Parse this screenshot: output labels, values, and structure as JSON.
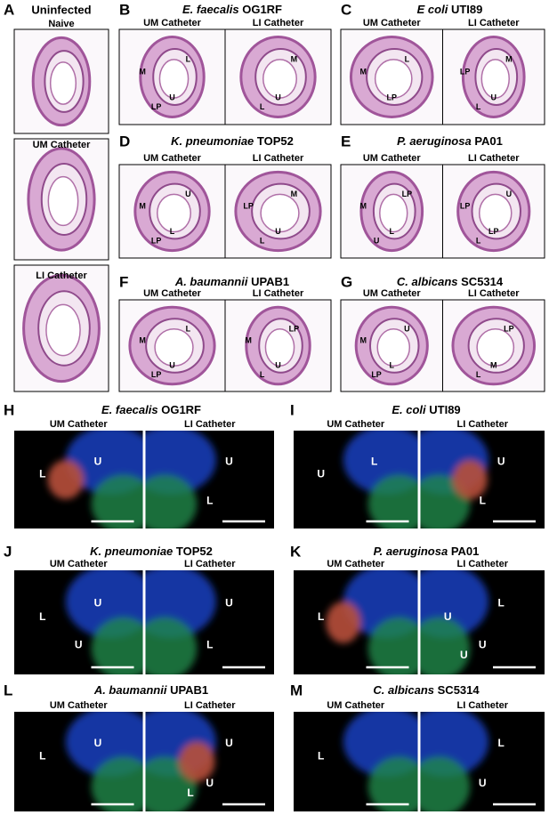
{
  "panel_a": {
    "letter": "A",
    "title": "Uninfected",
    "images": [
      "Naive",
      "UM Catheter",
      "LI Catheter"
    ]
  },
  "panels": [
    {
      "letter": "B",
      "organism": "E. faecalis",
      "strain": "OG1RF",
      "images": [
        {
          "label": "UM Catheter",
          "annotations": [
            "M",
            "L",
            "U",
            "LP"
          ]
        },
        {
          "label": "LI Catheter",
          "annotations": [
            "M",
            "U",
            "L"
          ]
        }
      ]
    },
    {
      "letter": "C",
      "organism": "E coli",
      "strain": "UTI89",
      "images": [
        {
          "label": "UM Catheter",
          "annotations": [
            "M",
            "L",
            "LP"
          ]
        },
        {
          "label": "LI Catheter",
          "annotations": [
            "M",
            "U",
            "L",
            "LP"
          ]
        }
      ]
    },
    {
      "letter": "D",
      "organism": "K. pneumoniae",
      "strain": "TOP52",
      "images": [
        {
          "label": "UM Catheter",
          "annotations": [
            "M",
            "U",
            "L",
            "LP"
          ]
        },
        {
          "label": "LI Catheter",
          "annotations": [
            "M",
            "U",
            "L",
            "LP"
          ]
        }
      ]
    },
    {
      "letter": "E",
      "organism": "P. aeruginosa",
      "strain": "PA01",
      "images": [
        {
          "label": "UM Catheter",
          "annotations": [
            "M",
            "LP",
            "L",
            "U"
          ]
        },
        {
          "label": "LI Catheter",
          "annotations": [
            "U",
            "LP",
            "L",
            "LP"
          ]
        }
      ]
    },
    {
      "letter": "F",
      "organism": "A. baumannii",
      "strain": "UPAB1",
      "images": [
        {
          "label": "UM Catheter",
          "annotations": [
            "M",
            "L",
            "U",
            "LP"
          ]
        },
        {
          "label": "LI Catheter",
          "annotations": [
            "LP",
            "U",
            "L",
            "M"
          ]
        }
      ]
    },
    {
      "letter": "G",
      "organism": "C. albicans",
      "strain": "SC5314",
      "images": [
        {
          "label": "UM Catheter",
          "annotations": [
            "M",
            "U",
            "L",
            "LP"
          ]
        },
        {
          "label": "LI Catheter",
          "annotations": [
            "LP",
            "M",
            "L"
          ]
        }
      ]
    },
    {
      "letter": "H",
      "organism": "E. faecalis",
      "strain": "OG1RF",
      "images": [
        {
          "label": "UM Catheter",
          "annotations": [
            "L",
            "U"
          ]
        },
        {
          "label": "LI Catheter",
          "annotations": [
            "U",
            "L"
          ]
        }
      ]
    },
    {
      "letter": "I",
      "organism": "E. coli",
      "strain": "UTI89",
      "images": [
        {
          "label": "UM Catheter",
          "annotations": [
            "U",
            "L"
          ]
        },
        {
          "label": "LI Catheter",
          "annotations": [
            "U",
            "L"
          ]
        }
      ]
    },
    {
      "letter": "J",
      "organism": "K. pneumoniae",
      "strain": "TOP52",
      "images": [
        {
          "label": "UM Catheter",
          "annotations": [
            "L",
            "U",
            "U"
          ]
        },
        {
          "label": "LI Catheter",
          "annotations": [
            "U",
            "L"
          ]
        }
      ]
    },
    {
      "letter": "K",
      "organism": "P. aeruginosa",
      "strain": "PA01",
      "images": [
        {
          "label": "UM Catheter",
          "annotations": [
            "L"
          ]
        },
        {
          "label": "LI Catheter",
          "annotations": [
            "L",
            "U",
            "U",
            "U"
          ]
        }
      ]
    },
    {
      "letter": "L",
      "organism": "A. baumannii",
      "strain": "UPAB1",
      "images": [
        {
          "label": "UM Catheter",
          "annotations": [
            "L",
            "U"
          ]
        },
        {
          "label": "LI Catheter",
          "annotations": [
            "U",
            "U",
            "L"
          ]
        }
      ]
    },
    {
      "letter": "M",
      "organism": "C. albicans",
      "strain": "SC5314",
      "images": [
        {
          "label": "UM Catheter",
          "annotations": [
            "L"
          ]
        },
        {
          "label": "LI Catheter",
          "annotations": [
            "L",
            "U"
          ]
        }
      ]
    }
  ]
}
